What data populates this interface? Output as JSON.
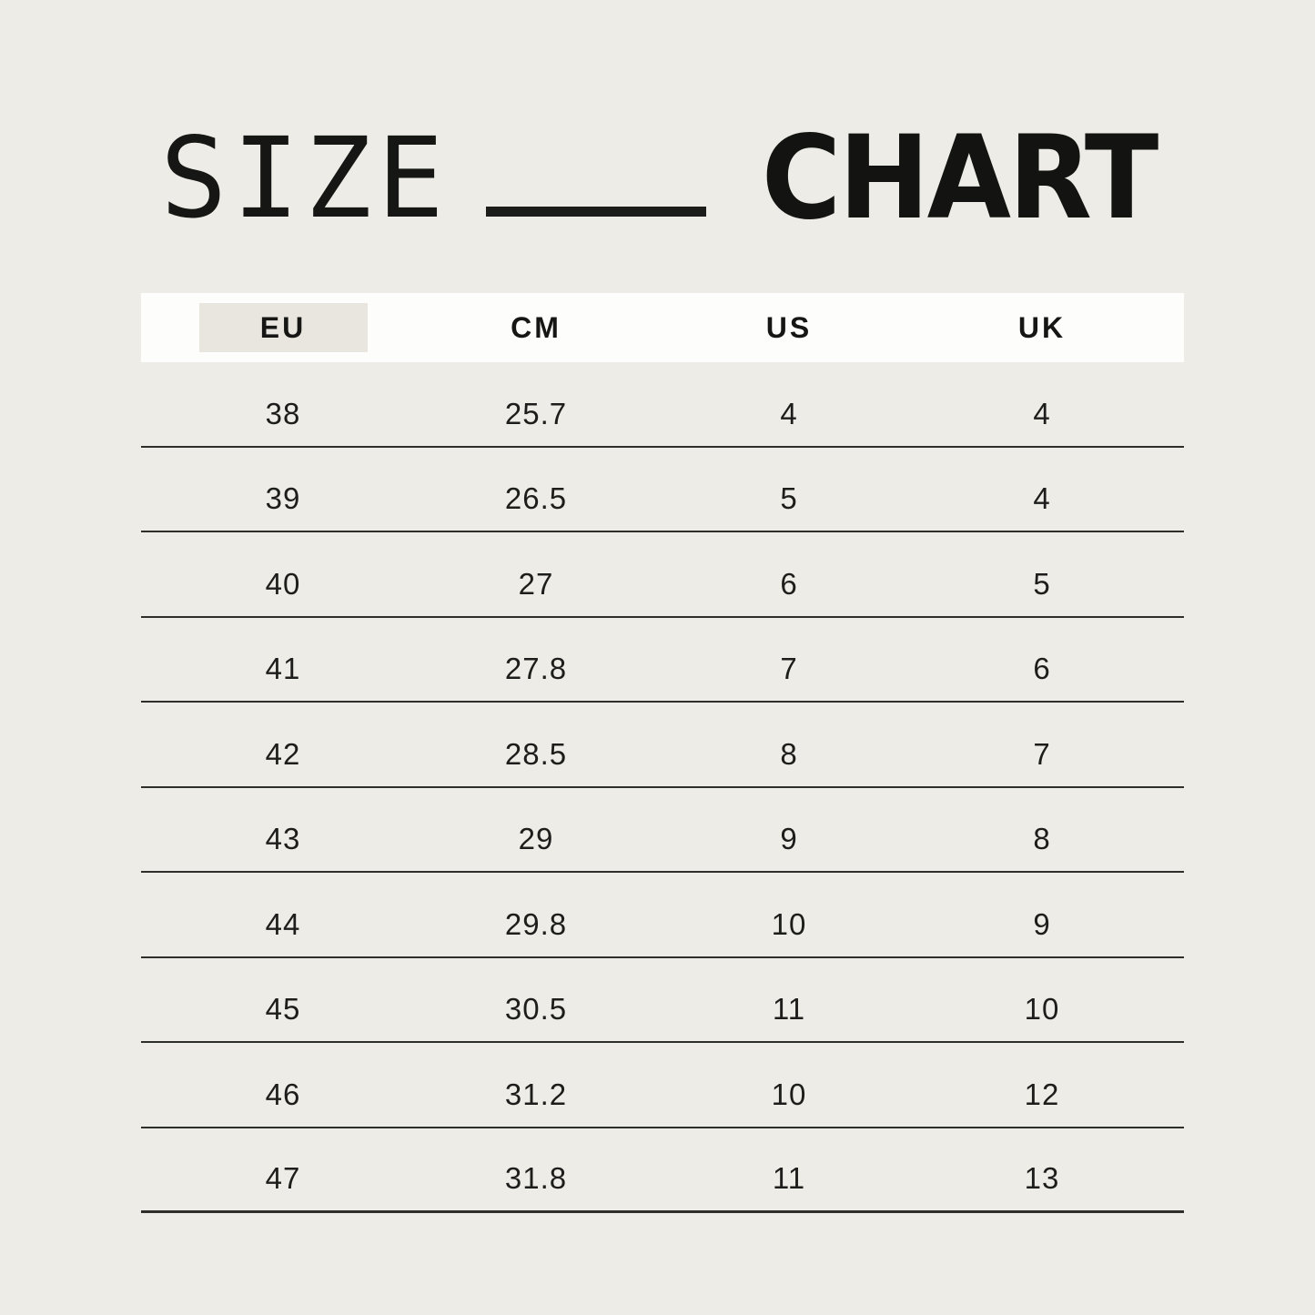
{
  "title": {
    "left": "SIZE",
    "right": "CHART"
  },
  "colors": {
    "background": "#edece7",
    "header_band": "#fdfdfc",
    "eu_highlight": "#e9e6df",
    "text": "#1d1d1b",
    "row_line": "#2e2e2b"
  },
  "chart_data": {
    "type": "table",
    "title": "SIZE CHART",
    "columns": [
      "EU",
      "CM",
      "US",
      "UK"
    ],
    "highlighted_column": "EU",
    "rows": [
      [
        "38",
        "25.7",
        "4",
        "4"
      ],
      [
        "39",
        "26.5",
        "5",
        "4"
      ],
      [
        "40",
        "27",
        "6",
        "5"
      ],
      [
        "41",
        "27.8",
        "7",
        "6"
      ],
      [
        "42",
        "28.5",
        "8",
        "7"
      ],
      [
        "43",
        "29",
        "9",
        "8"
      ],
      [
        "44",
        "29.8",
        "10",
        "9"
      ],
      [
        "45",
        "30.5",
        "11",
        "10"
      ],
      [
        "46",
        "31.2",
        "10",
        "12"
      ],
      [
        "47",
        "31.8",
        "11",
        "13"
      ]
    ]
  }
}
